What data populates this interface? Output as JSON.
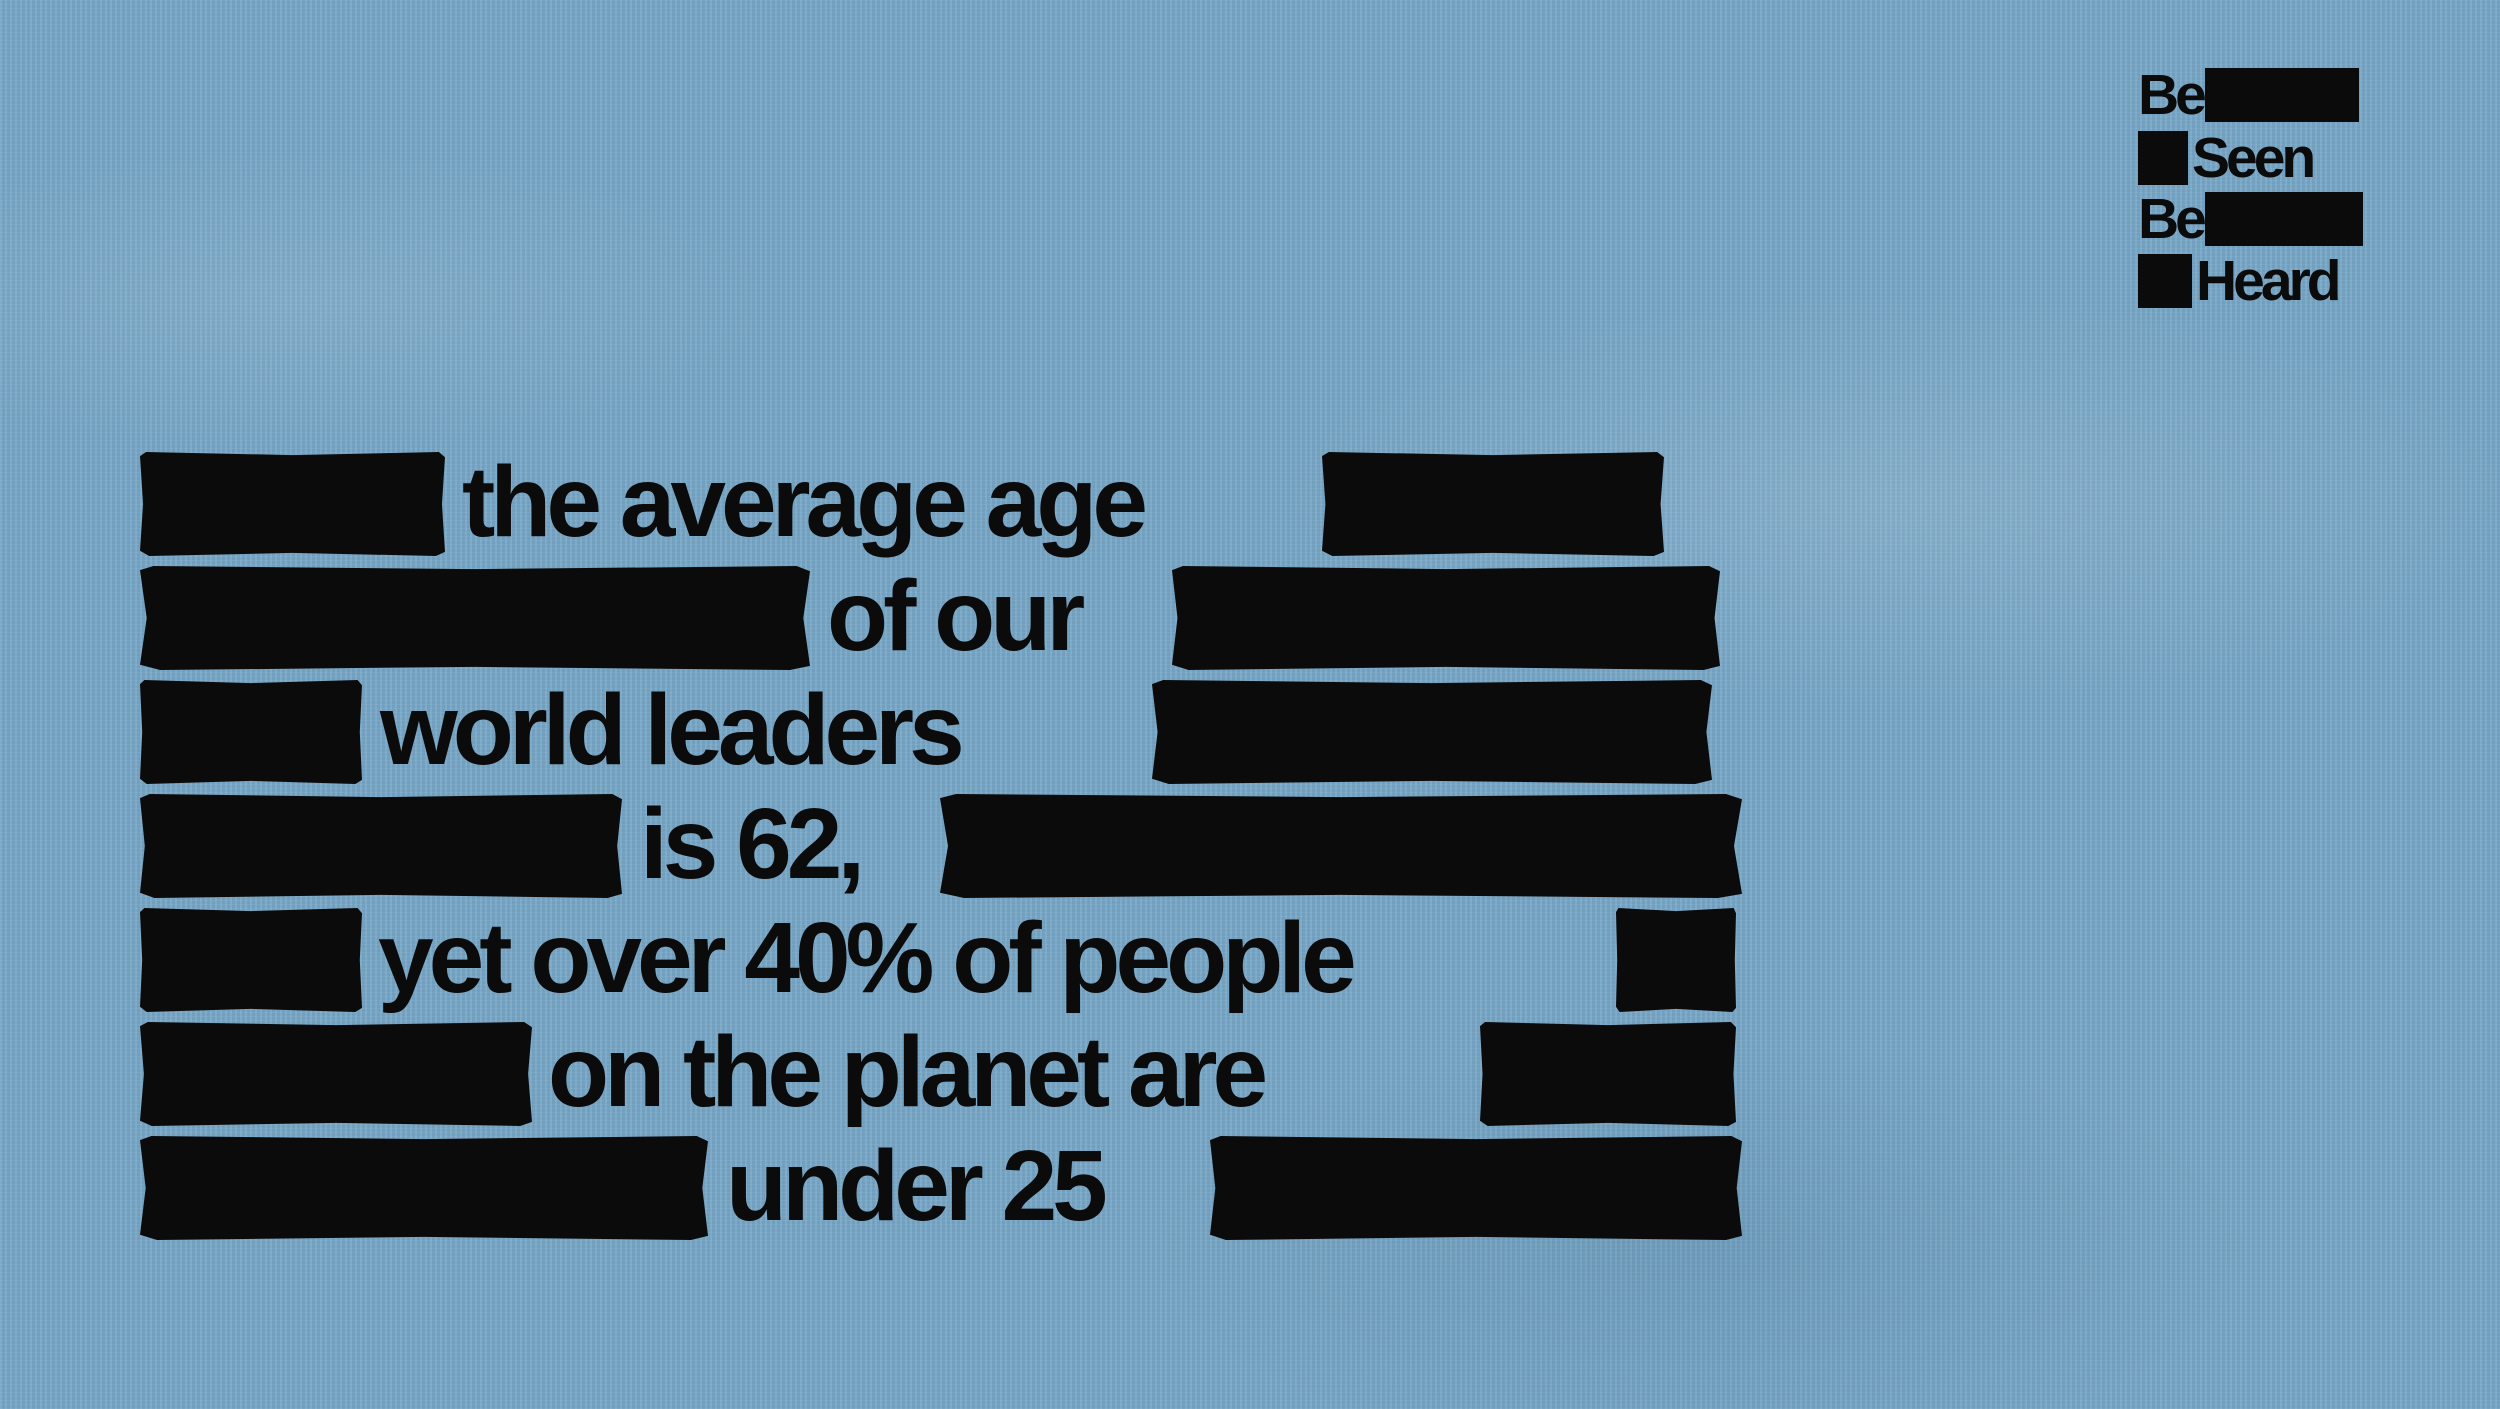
{
  "background_color": "#78a8c8",
  "ink_color": "#0b0b0b",
  "logo": {
    "line1": "Be",
    "line2": "Seen",
    "line3": "Be",
    "line4": "Heard"
  },
  "headline": {
    "lines": [
      "the average age",
      "of our",
      "world leaders",
      "is 62,",
      "yet over 40% of people",
      "on the planet are",
      "under 25"
    ]
  }
}
